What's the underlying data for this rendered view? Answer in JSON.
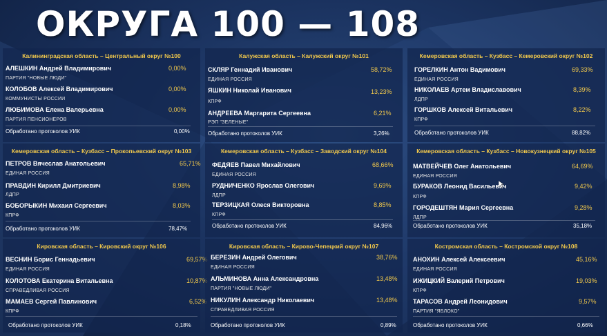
{
  "title": "ОКРУГА 100 — 108",
  "proc_label": "Обработано протоколов УИК",
  "districts": [
    {
      "header": "Калининградская область – Центральный округ №100",
      "candidates": [
        {
          "name": "АЛЕШКИН Андрей Владимирович",
          "party": "ПАРТИЯ \"НОВЫЕ ЛЮДИ\"",
          "pct": "0,00%"
        },
        {
          "name": "КОЛОБОВ Алексей Владимирович",
          "party": "КОММУНИСТЫ РОССИИ",
          "pct": "0,00%"
        },
        {
          "name": "ЛЮБИМОВА Елена Валерьевна",
          "party": "ПАРТИЯ ПЕНСИОНЕРОВ",
          "pct": "0,00%"
        }
      ],
      "processed": "0,00%"
    },
    {
      "header": "Калужская область – Калужский округ №101",
      "candidates": [
        {
          "name": "СКЛЯР Геннадий Иванович",
          "party": "ЕДИНАЯ РОССИЯ",
          "pct": "58,72%"
        },
        {
          "name": "ЯШКИН Николай Иванович",
          "party": "КПРФ",
          "pct": "13,23%"
        },
        {
          "name": "АНДРЕЕВА Маргарита Сергеевна",
          "party": "РЭП \"ЗЕЛЕНЫЕ\"",
          "pct": "6,21%"
        }
      ],
      "processed": "3,26%"
    },
    {
      "header": "Кемеровская область – Кузбасс – Кемеровский округ №102",
      "candidates": [
        {
          "name": "ГОРЕЛКИН Антон Вадимович",
          "party": "ЕДИНАЯ РОССИЯ",
          "pct": "69,33%"
        },
        {
          "name": "НИКОЛАЕВ Артем Владиславович",
          "party": "ЛДПР",
          "pct": "8,39%"
        },
        {
          "name": "ГОРШКОВ Алексей Витальевич",
          "party": "КПРФ",
          "pct": "8,22%"
        }
      ],
      "processed": "88,82%"
    },
    {
      "header": "Кемеровская область – Кузбасс – Прокопьевский округ №103",
      "candidates": [
        {
          "name": "ПЕТРОВ Вячеслав Анатольевич",
          "party": "ЕДИНАЯ РОССИЯ",
          "pct": "65,71%"
        },
        {
          "name": "ПРАВДИН Кирилл Дмитриевич",
          "party": "ЛДПР",
          "pct": "8,98%"
        },
        {
          "name": "БОБОРЫКИН Михаил Сергеевич",
          "party": "КПРФ",
          "pct": "8,03%"
        }
      ],
      "processed": "78,47%"
    },
    {
      "header": "Кемеровская область – Кузбасс – Заводский округ №104",
      "candidates": [
        {
          "name": "ФЕДЯЕВ Павел Михайлович",
          "party": "ЕДИНАЯ РОССИЯ",
          "pct": "68,66%"
        },
        {
          "name": "РУДНИЧЕНКО Ярослав Олегович",
          "party": "ЛДПР",
          "pct": "9,69%"
        },
        {
          "name": "ТЕРЗИЦКАЯ Олеся Викторовна",
          "party": "КПРФ",
          "pct": "8,85%"
        }
      ],
      "processed": "84,96%"
    },
    {
      "header": "Кемеровская область – Кузбасс – Новокузнецкий округ №105",
      "candidates": [
        {
          "name": "МАТВЕЙЧЕВ Олег Анатольевич",
          "party": "ЕДИНАЯ РОССИЯ",
          "pct": "64,69%"
        },
        {
          "name": "БУРАКОВ Леонид Васильевич",
          "party": "КПРФ",
          "pct": "9,42%"
        },
        {
          "name": "ГОРОДЕШТЯН Мария Сергеевна",
          "party": "ЛДПР",
          "pct": "9,28%"
        }
      ],
      "processed": "35,18%"
    },
    {
      "header": "Кировская область – Кировский округ №106",
      "candidates": [
        {
          "name": "ВЕСНИН Борис Геннадьевич",
          "party": "ЕДИНАЯ РОССИЯ",
          "pct": "69,57%"
        },
        {
          "name": "КОЛОТОВА Екатерина Витальевна",
          "party": "СПРАВЕДЛИВАЯ РОССИЯ",
          "pct": "10,87%"
        },
        {
          "name": "МАМАЕВ Сергей Павлинович",
          "party": "КПРФ",
          "pct": "6,52%"
        }
      ],
      "processed": "0,18%"
    },
    {
      "header": "Кировская область – Кирово-Чепецкий округ №107",
      "candidates": [
        {
          "name": "БЕРЕЗИН Андрей Олегович",
          "party": "ЕДИНАЯ РОССИЯ",
          "pct": "38,76%"
        },
        {
          "name": "АЛЬМИНОВА Анна Александровна",
          "party": "ПАРТИЯ \"НОВЫЕ ЛЮДИ\"",
          "pct": "13,48%"
        },
        {
          "name": "НИКУЛИН Александр Николаевич",
          "party": "СПРАВЕДЛИВАЯ РОССИЯ",
          "pct": "13,48%"
        }
      ],
      "processed": "0,89%"
    },
    {
      "header": "Костромская область – Костромской округ №108",
      "candidates": [
        {
          "name": "АНОХИН Алексей Алексеевич",
          "party": "ЕДИНАЯ РОССИЯ",
          "pct": "45,16%"
        },
        {
          "name": "ИЖИЦКИЙ Валерий Петрович",
          "party": "КПРФ",
          "pct": "19,03%"
        },
        {
          "name": "ТАРАСОВ Андрей Леонидович",
          "party": "ПАРТИЯ \"ЯБЛОКО\"",
          "pct": "9,57%"
        }
      ],
      "processed": "0,66%"
    }
  ]
}
